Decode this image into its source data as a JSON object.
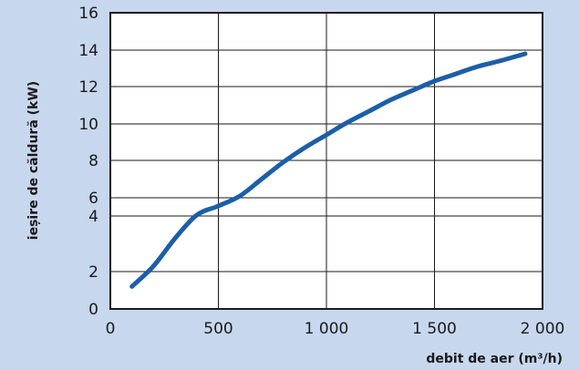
{
  "chart_data": {
    "type": "line",
    "xlabel": "debit de aer (m³/h)",
    "ylabel": "ieșire de căldură (kW)",
    "xlim": [
      0,
      2000
    ],
    "x_ticks": [
      "0",
      "500",
      "1 000",
      "1 500",
      "2 000"
    ],
    "y_ticks": [
      "0",
      "2",
      "4",
      "6",
      "8",
      "10",
      "12",
      "14",
      "16"
    ],
    "grid": true,
    "series": [
      {
        "x": [
          100,
          200,
          300,
          400,
          500,
          600,
          700,
          800,
          900,
          1000,
          1100,
          1200,
          1300,
          1400,
          1500,
          1600,
          1700,
          1800,
          1920
        ],
        "y": [
          1.2,
          2.2,
          3.2,
          4.1,
          5.1,
          6.1,
          7.0,
          7.9,
          8.7,
          9.4,
          10.1,
          10.7,
          11.3,
          11.8,
          12.3,
          12.7,
          13.1,
          13.4,
          13.8
        ]
      }
    ],
    "colors": {
      "line": "#1c5ea8",
      "background": "#c7d7ee",
      "plot_bg": "#ffffff",
      "grid": "#1a1a1a"
    }
  }
}
